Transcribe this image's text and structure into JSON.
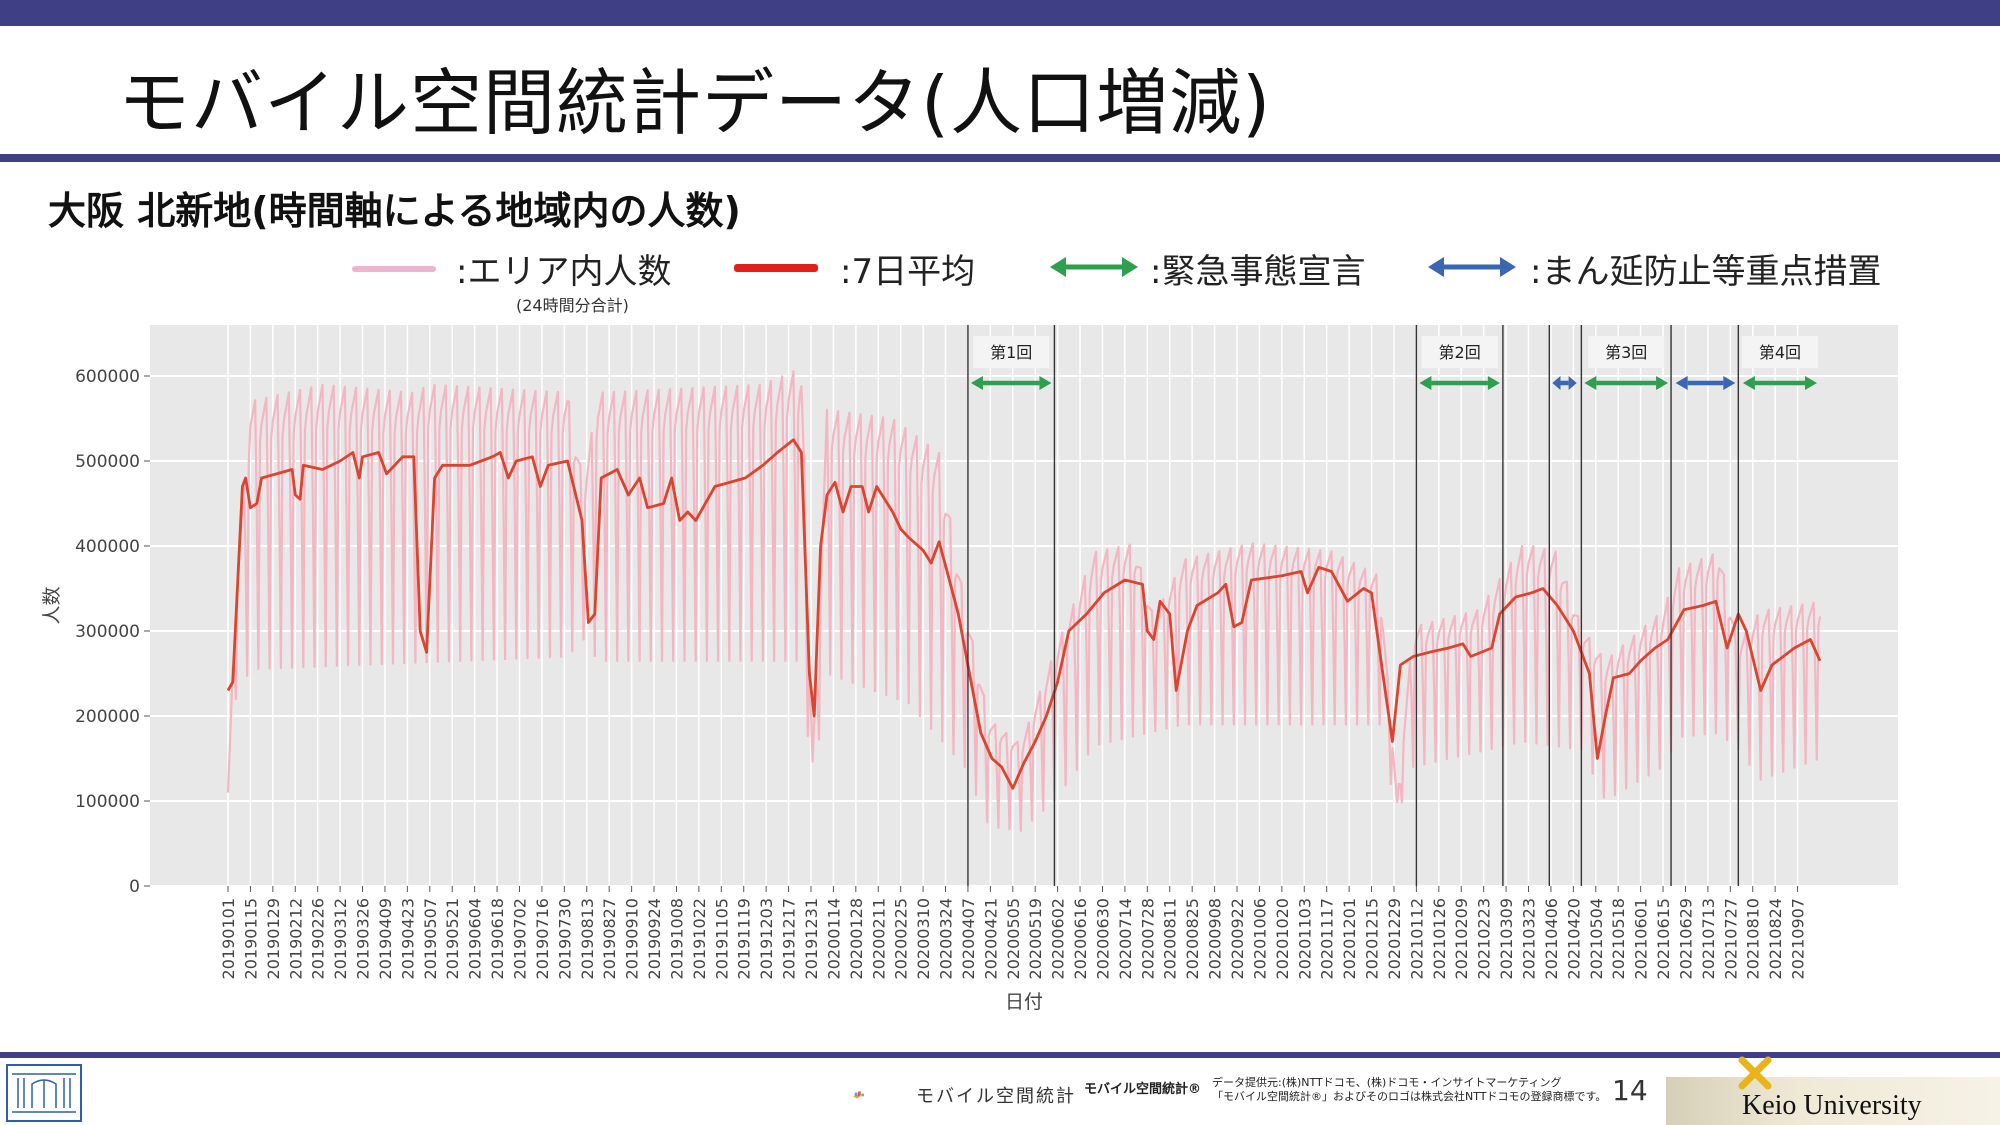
{
  "slide": {
    "title": "モバイル空間統計データ(人口増減)",
    "subtitle": "大阪 北新地(時間軸による地域内の人数)",
    "page_number": "14"
  },
  "legend": {
    "area_label": ":エリア内人数",
    "area_note": "(24時間分合計)",
    "avg_label": ":7日平均",
    "emergency_label": ":緊急事態宣言",
    "priority_label": ":まん延防止等重点措置"
  },
  "colors": {
    "top_bar": "#3f3f86",
    "area_series": "#f4b6c2",
    "avg_series": "#d9452e",
    "emergency_arrow": "#2e9e4f",
    "priority_arrow": "#3a67b0",
    "plot_bg": "#e8e8e8"
  },
  "footer": {
    "brand_text": "モバイル空間統計",
    "brand_registered": "モバイル空間統計®",
    "credit_line1": "データ提供元:(株)NTTドコモ、(株)ドコモ・インサイトマーケティング",
    "credit_line2": "「モバイル空間統計®」およびそのロゴは株式会社NTTドコモの登録商標です。",
    "university": "Keio University"
  },
  "chart_data": {
    "type": "line",
    "xlabel": "日付",
    "ylabel": "人数",
    "ylim": [
      0,
      660000
    ],
    "yticks": [
      0,
      100000,
      200000,
      300000,
      400000,
      500000,
      600000
    ],
    "ytick_labels": [
      "0",
      "100000",
      "200000",
      "300000",
      "400000",
      "500000",
      "600000"
    ],
    "x_start": "20190101",
    "x_end": "20210921",
    "x_tick_labels": [
      "20190101",
      "20190115",
      "20190129",
      "20190212",
      "20190226",
      "20190312",
      "20190326",
      "20190409",
      "20190423",
      "20190507",
      "20190521",
      "20190604",
      "20190618",
      "20190702",
      "20190716",
      "20190730",
      "20190813",
      "20190827",
      "20190910",
      "20190924",
      "20191008",
      "20191022",
      "20191105",
      "20191119",
      "20191203",
      "20191217",
      "20191231",
      "20200114",
      "20200128",
      "20200211",
      "20200225",
      "20200310",
      "20200324",
      "20200407",
      "20200421",
      "20200505",
      "20200519",
      "20200602",
      "20200616",
      "20200630",
      "20200714",
      "20200728",
      "20200811",
      "20200825",
      "20200908",
      "20200922",
      "20201006",
      "20201020",
      "20201103",
      "20201117",
      "20201201",
      "20201215",
      "20201229",
      "20210112",
      "20210126",
      "20210209",
      "20210223",
      "20210309",
      "20210323",
      "20210406",
      "20210420",
      "20210504",
      "20210518",
      "20210601",
      "20210615",
      "20210629",
      "20210713",
      "20210727",
      "20210810",
      "20210824",
      "20210907"
    ],
    "grid": true,
    "series": [
      {
        "name": "エリア内人数",
        "style": "daily values oscillating weekly between weekend low and weekday high",
        "weekday_high": [
          [
            "20190101",
            110000
          ],
          [
            "20190106",
            360000
          ],
          [
            "20190115",
            580000
          ],
          [
            "20190301",
            600000
          ],
          [
            "20190427",
            590000
          ],
          [
            "20190507",
            600000
          ],
          [
            "20190801",
            590000
          ],
          [
            "20190811",
            480000
          ],
          [
            "20190820",
            590000
          ],
          [
            "20191201",
            600000
          ],
          [
            "20191225",
            620000
          ],
          [
            "20200101",
            150000
          ],
          [
            "20200110",
            570000
          ],
          [
            "20200220",
            560000
          ],
          [
            "20200320",
            520000
          ],
          [
            "20200405",
            340000
          ],
          [
            "20200420",
            200000
          ],
          [
            "20200510",
            170000
          ],
          [
            "20200531",
            280000
          ],
          [
            "20200625",
            400000
          ],
          [
            "20200720",
            410000
          ],
          [
            "20200801",
            320000
          ],
          [
            "20200820",
            390000
          ],
          [
            "20201001",
            410000
          ],
          [
            "20201120",
            400000
          ],
          [
            "20201220",
            370000
          ],
          [
            "20201231",
            100000
          ],
          [
            "20210110",
            310000
          ],
          [
            "20210220",
            330000
          ],
          [
            "20210320",
            410000
          ],
          [
            "20210410",
            400000
          ],
          [
            "20210425",
            310000
          ],
          [
            "20210510",
            270000
          ],
          [
            "20210615",
            330000
          ],
          [
            "20210625",
            380000
          ],
          [
            "20210720",
            400000
          ],
          [
            "20210801",
            290000
          ],
          [
            "20210815",
            330000
          ],
          [
            "20210921",
            340000
          ]
        ],
        "weekend_low": [
          [
            "20190101",
            110000
          ],
          [
            "20190106",
            220000
          ],
          [
            "20190115",
            255000
          ],
          [
            "20190801",
            270000
          ],
          [
            "20190811",
            290000
          ],
          [
            "20190820",
            265000
          ],
          [
            "20191225",
            265000
          ],
          [
            "20200101",
            110000
          ],
          [
            "20200110",
            250000
          ],
          [
            "20200301",
            215000
          ],
          [
            "20200405",
            140000
          ],
          [
            "20200420",
            70000
          ],
          [
            "20200510",
            65000
          ],
          [
            "20200531",
            100000
          ],
          [
            "20200625",
            165000
          ],
          [
            "20200820",
            190000
          ],
          [
            "20201220",
            190000
          ],
          [
            "20201231",
            80000
          ],
          [
            "20210110",
            140000
          ],
          [
            "20210320",
            170000
          ],
          [
            "20210425",
            160000
          ],
          [
            "20210510",
            100000
          ],
          [
            "20210615",
            140000
          ],
          [
            "20210625",
            175000
          ],
          [
            "20210720",
            180000
          ],
          [
            "20210801",
            160000
          ],
          [
            "20210815",
            125000
          ],
          [
            "20210921",
            150000
          ]
        ]
      },
      {
        "name": "7日平均",
        "points": [
          [
            "20190101",
            230000
          ],
          [
            "20190104",
            240000
          ],
          [
            "20190110",
            470000
          ],
          [
            "20190112",
            480000
          ],
          [
            "20190115",
            445000
          ],
          [
            "20190119",
            450000
          ],
          [
            "20190122",
            480000
          ],
          [
            "20190210",
            490000
          ],
          [
            "20190212",
            460000
          ],
          [
            "20190215",
            455000
          ],
          [
            "20190217",
            495000
          ],
          [
            "20190301",
            490000
          ],
          [
            "20190312",
            500000
          ],
          [
            "20190320",
            510000
          ],
          [
            "20190324",
            480000
          ],
          [
            "20190326",
            505000
          ],
          [
            "20190405",
            510000
          ],
          [
            "20190410",
            485000
          ],
          [
            "20190420",
            505000
          ],
          [
            "20190427",
            505000
          ],
          [
            "20190501",
            300000
          ],
          [
            "20190505",
            275000
          ],
          [
            "20190510",
            480000
          ],
          [
            "20190515",
            495000
          ],
          [
            "20190601",
            495000
          ],
          [
            "20190615",
            505000
          ],
          [
            "20190620",
            510000
          ],
          [
            "20190625",
            480000
          ],
          [
            "20190630",
            500000
          ],
          [
            "20190710",
            505000
          ],
          [
            "20190715",
            470000
          ],
          [
            "20190720",
            495000
          ],
          [
            "20190801",
            500000
          ],
          [
            "20190810",
            430000
          ],
          [
            "20190814",
            310000
          ],
          [
            "20190818",
            320000
          ],
          [
            "20190822",
            480000
          ],
          [
            "20190901",
            490000
          ],
          [
            "20190908",
            460000
          ],
          [
            "20190915",
            480000
          ],
          [
            "20190920",
            445000
          ],
          [
            "20190930",
            450000
          ],
          [
            "20191005",
            480000
          ],
          [
            "20191010",
            430000
          ],
          [
            "20191015",
            440000
          ],
          [
            "20191020",
            430000
          ],
          [
            "20191101",
            470000
          ],
          [
            "20191120",
            480000
          ],
          [
            "20191201",
            495000
          ],
          [
            "20191210",
            510000
          ],
          [
            "20191220",
            525000
          ],
          [
            "20191225",
            510000
          ],
          [
            "20191230",
            250000
          ],
          [
            "20200102",
            200000
          ],
          [
            "20200106",
            400000
          ],
          [
            "20200110",
            460000
          ],
          [
            "20200115",
            475000
          ],
          [
            "20200120",
            440000
          ],
          [
            "20200125",
            470000
          ],
          [
            "20200201",
            470000
          ],
          [
            "20200205",
            440000
          ],
          [
            "20200210",
            470000
          ],
          [
            "20200220",
            440000
          ],
          [
            "20200225",
            420000
          ],
          [
            "20200301",
            410000
          ],
          [
            "20200310",
            395000
          ],
          [
            "20200315",
            380000
          ],
          [
            "20200320",
            405000
          ],
          [
            "20200325",
            370000
          ],
          [
            "20200401",
            320000
          ],
          [
            "20200408",
            250000
          ],
          [
            "20200415",
            180000
          ],
          [
            "20200422",
            150000
          ],
          [
            "20200428",
            140000
          ],
          [
            "20200505",
            115000
          ],
          [
            "20200512",
            145000
          ],
          [
            "20200519",
            170000
          ],
          [
            "20200526",
            200000
          ],
          [
            "20200602",
            240000
          ],
          [
            "20200609",
            300000
          ],
          [
            "20200620",
            320000
          ],
          [
            "20200701",
            345000
          ],
          [
            "20200714",
            360000
          ],
          [
            "20200725",
            355000
          ],
          [
            "20200728",
            300000
          ],
          [
            "20200801",
            290000
          ],
          [
            "20200805",
            335000
          ],
          [
            "20200811",
            320000
          ],
          [
            "20200815",
            230000
          ],
          [
            "20200822",
            300000
          ],
          [
            "20200828",
            330000
          ],
          [
            "20200910",
            345000
          ],
          [
            "20200915",
            355000
          ],
          [
            "20200920",
            305000
          ],
          [
            "20200925",
            310000
          ],
          [
            "20201001",
            360000
          ],
          [
            "20201020",
            365000
          ],
          [
            "20201101",
            370000
          ],
          [
            "20201105",
            345000
          ],
          [
            "20201112",
            375000
          ],
          [
            "20201120",
            370000
          ],
          [
            "20201130",
            335000
          ],
          [
            "20201210",
            350000
          ],
          [
            "20201215",
            345000
          ],
          [
            "20201222",
            250000
          ],
          [
            "20201228",
            170000
          ],
          [
            "20210102",
            260000
          ],
          [
            "20210110",
            270000
          ],
          [
            "20210120",
            275000
          ],
          [
            "20210201",
            280000
          ],
          [
            "20210210",
            285000
          ],
          [
            "20210215",
            270000
          ],
          [
            "20210228",
            280000
          ],
          [
            "20210305",
            320000
          ],
          [
            "20210315",
            340000
          ],
          [
            "20210325",
            345000
          ],
          [
            "20210401",
            350000
          ],
          [
            "20210410",
            330000
          ],
          [
            "20210420",
            300000
          ],
          [
            "20210430",
            250000
          ],
          [
            "20210505",
            150000
          ],
          [
            "20210510",
            200000
          ],
          [
            "20210515",
            245000
          ],
          [
            "20210525",
            250000
          ],
          [
            "20210601",
            265000
          ],
          [
            "20210610",
            280000
          ],
          [
            "20210618",
            290000
          ],
          [
            "20210628",
            325000
          ],
          [
            "20210710",
            330000
          ],
          [
            "20210718",
            335000
          ],
          [
            "20210725",
            280000
          ],
          [
            "20210801",
            320000
          ],
          [
            "20210806",
            300000
          ],
          [
            "20210815",
            230000
          ],
          [
            "20210822",
            260000
          ],
          [
            "20210905",
            280000
          ],
          [
            "20210910",
            285000
          ],
          [
            "20210915",
            290000
          ],
          [
            "20210921",
            265000
          ]
        ]
      }
    ],
    "period_lines": [
      "20200407",
      "20200531",
      "20210112",
      "20210307",
      "20210405",
      "20210425",
      "20210620",
      "20210801"
    ],
    "periods": [
      {
        "label": "第1回",
        "type": "emergency",
        "start": "20200407",
        "end": "20200531"
      },
      {
        "label": "第2回",
        "type": "emergency",
        "start": "20210112",
        "end": "20210307"
      },
      {
        "label": "",
        "type": "priority",
        "start": "20210405",
        "end": "20210424"
      },
      {
        "label": "第3回",
        "type": "emergency",
        "start": "20210425",
        "end": "20210620"
      },
      {
        "label": "",
        "type": "priority",
        "start": "20210621",
        "end": "20210801"
      },
      {
        "label": "第4回",
        "type": "emergency",
        "start": "20210802",
        "end": "20210921"
      }
    ]
  }
}
